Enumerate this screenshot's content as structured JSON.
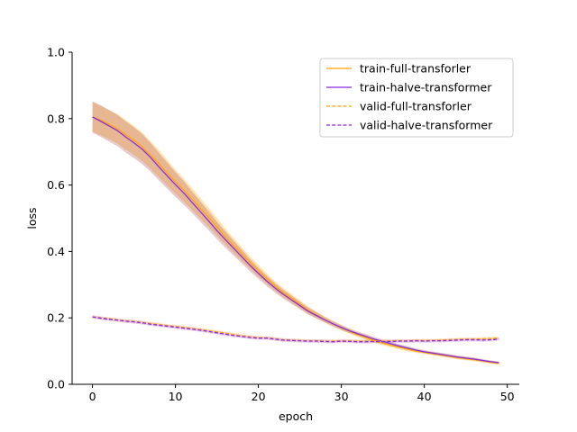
{
  "chart_data": {
    "type": "line",
    "title": "",
    "xlabel": "epoch",
    "ylabel": "loss",
    "xlim": [
      -2.45,
      51.45
    ],
    "ylim": [
      0.0,
      1.0
    ],
    "xticks": [
      0,
      10,
      20,
      30,
      40,
      50
    ],
    "yticks": [
      0.0,
      0.2,
      0.4,
      0.6,
      0.8,
      1.0
    ],
    "xtick_labels": [
      "0",
      "10",
      "20",
      "30",
      "40",
      "50"
    ],
    "ytick_labels": [
      "0.0",
      "0.2",
      "0.4",
      "0.6",
      "0.8",
      "1.0"
    ],
    "grid": false,
    "legend_position": "top-right",
    "x": [
      0,
      1,
      2,
      3,
      4,
      5,
      6,
      7,
      8,
      9,
      10,
      11,
      12,
      13,
      14,
      15,
      16,
      17,
      18,
      19,
      20,
      21,
      22,
      23,
      24,
      25,
      26,
      27,
      28,
      29,
      30,
      31,
      32,
      33,
      34,
      35,
      36,
      37,
      38,
      39,
      40,
      41,
      42,
      43,
      44,
      45,
      46,
      47,
      48,
      49
    ],
    "series": [
      {
        "name": "train-full-transforler",
        "color": "#ffa500",
        "dash": "solid",
        "values": [
          0.805,
          0.795,
          0.783,
          0.77,
          0.752,
          0.735,
          0.715,
          0.69,
          0.665,
          0.637,
          0.61,
          0.585,
          0.558,
          0.53,
          0.503,
          0.474,
          0.445,
          0.418,
          0.392,
          0.366,
          0.342,
          0.318,
          0.296,
          0.276,
          0.259,
          0.241,
          0.223,
          0.209,
          0.195,
          0.182,
          0.17,
          0.159,
          0.149,
          0.14,
          0.131,
          0.124,
          0.117,
          0.111,
          0.105,
          0.1,
          0.096,
          0.092,
          0.088,
          0.084,
          0.08,
          0.077,
          0.074,
          0.07,
          0.066,
          0.063
        ],
        "band_low": [
          0.76,
          0.75,
          0.738,
          0.725,
          0.707,
          0.69,
          0.672,
          0.648,
          0.624,
          0.598,
          0.573,
          0.55,
          0.525,
          0.499,
          0.474,
          0.447,
          0.42,
          0.395,
          0.371,
          0.347,
          0.324,
          0.302,
          0.281,
          0.262,
          0.246,
          0.229,
          0.212,
          0.199,
          0.186,
          0.174,
          0.162,
          0.152,
          0.142,
          0.133,
          0.125,
          0.118,
          0.111,
          0.105,
          0.099,
          0.095,
          0.091,
          0.087,
          0.083,
          0.079,
          0.075,
          0.072,
          0.069,
          0.066,
          0.062,
          0.059
        ],
        "band_high": [
          0.85,
          0.838,
          0.826,
          0.813,
          0.796,
          0.778,
          0.758,
          0.732,
          0.706,
          0.676,
          0.647,
          0.62,
          0.591,
          0.561,
          0.532,
          0.501,
          0.47,
          0.441,
          0.413,
          0.385,
          0.36,
          0.334,
          0.311,
          0.29,
          0.272,
          0.253,
          0.234,
          0.219,
          0.204,
          0.19,
          0.178,
          0.166,
          0.156,
          0.147,
          0.137,
          0.13,
          0.123,
          0.117,
          0.111,
          0.105,
          0.101,
          0.097,
          0.093,
          0.089,
          0.085,
          0.082,
          0.079,
          0.074,
          0.07,
          0.067
        ]
      },
      {
        "name": "train-halve-transformer",
        "color": "#8a2be2",
        "dash": "solid",
        "values": [
          0.805,
          0.792,
          0.778,
          0.764,
          0.745,
          0.727,
          0.708,
          0.683,
          0.655,
          0.628,
          0.601,
          0.576,
          0.548,
          0.52,
          0.492,
          0.463,
          0.436,
          0.41,
          0.384,
          0.358,
          0.334,
          0.311,
          0.29,
          0.271,
          0.254,
          0.237,
          0.22,
          0.207,
          0.194,
          0.182,
          0.171,
          0.161,
          0.152,
          0.144,
          0.136,
          0.129,
          0.122,
          0.115,
          0.109,
          0.103,
          0.098,
          0.094,
          0.09,
          0.086,
          0.082,
          0.079,
          0.076,
          0.072,
          0.068,
          0.065
        ],
        "band_low": [
          0.758,
          0.745,
          0.731,
          0.717,
          0.698,
          0.681,
          0.663,
          0.64,
          0.614,
          0.589,
          0.564,
          0.541,
          0.516,
          0.49,
          0.464,
          0.437,
          0.412,
          0.388,
          0.364,
          0.34,
          0.317,
          0.296,
          0.276,
          0.258,
          0.242,
          0.226,
          0.21,
          0.198,
          0.186,
          0.174,
          0.164,
          0.154,
          0.146,
          0.138,
          0.13,
          0.124,
          0.117,
          0.11,
          0.104,
          0.098,
          0.094,
          0.09,
          0.086,
          0.082,
          0.078,
          0.075,
          0.072,
          0.068,
          0.064,
          0.061
        ],
        "band_high": [
          0.852,
          0.84,
          0.826,
          0.812,
          0.792,
          0.774,
          0.754,
          0.727,
          0.697,
          0.668,
          0.639,
          0.612,
          0.581,
          0.551,
          0.521,
          0.49,
          0.461,
          0.433,
          0.405,
          0.377,
          0.351,
          0.327,
          0.305,
          0.285,
          0.267,
          0.249,
          0.231,
          0.217,
          0.203,
          0.19,
          0.179,
          0.168,
          0.159,
          0.151,
          0.142,
          0.135,
          0.128,
          0.121,
          0.115,
          0.108,
          0.103,
          0.099,
          0.095,
          0.091,
          0.087,
          0.084,
          0.081,
          0.076,
          0.072,
          0.069
        ]
      },
      {
        "name": "valid-full-transforler",
        "color": "#ffa500",
        "dash": "dashed",
        "values": [
          0.203,
          0.2,
          0.197,
          0.194,
          0.191,
          0.189,
          0.186,
          0.183,
          0.18,
          0.177,
          0.174,
          0.171,
          0.168,
          0.165,
          0.161,
          0.158,
          0.154,
          0.15,
          0.146,
          0.143,
          0.14,
          0.14,
          0.137,
          0.134,
          0.133,
          0.132,
          0.131,
          0.131,
          0.13,
          0.13,
          0.131,
          0.131,
          0.13,
          0.13,
          0.13,
          0.13,
          0.131,
          0.131,
          0.131,
          0.132,
          0.132,
          0.132,
          0.133,
          0.134,
          0.135,
          0.136,
          0.136,
          0.137,
          0.138,
          0.139
        ],
        "band_low": [
          0.198,
          0.195,
          0.192,
          0.189,
          0.186,
          0.184,
          0.181,
          0.178,
          0.175,
          0.172,
          0.169,
          0.166,
          0.163,
          0.16,
          0.156,
          0.153,
          0.149,
          0.145,
          0.141,
          0.138,
          0.135,
          0.135,
          0.132,
          0.129,
          0.128,
          0.127,
          0.126,
          0.126,
          0.125,
          0.125,
          0.126,
          0.126,
          0.125,
          0.125,
          0.125,
          0.125,
          0.126,
          0.126,
          0.126,
          0.127,
          0.127,
          0.127,
          0.128,
          0.129,
          0.13,
          0.131,
          0.131,
          0.132,
          0.133,
          0.134
        ],
        "band_high": [
          0.208,
          0.205,
          0.202,
          0.199,
          0.196,
          0.194,
          0.191,
          0.188,
          0.185,
          0.182,
          0.179,
          0.176,
          0.173,
          0.17,
          0.166,
          0.163,
          0.159,
          0.155,
          0.151,
          0.148,
          0.145,
          0.145,
          0.142,
          0.139,
          0.138,
          0.137,
          0.136,
          0.136,
          0.135,
          0.135,
          0.136,
          0.136,
          0.135,
          0.135,
          0.135,
          0.135,
          0.136,
          0.136,
          0.136,
          0.137,
          0.137,
          0.137,
          0.138,
          0.139,
          0.14,
          0.141,
          0.141,
          0.142,
          0.143,
          0.144
        ]
      },
      {
        "name": "valid-halve-transformer",
        "color": "#8a2be2",
        "dash": "dashed",
        "values": [
          0.203,
          0.199,
          0.196,
          0.193,
          0.19,
          0.188,
          0.185,
          0.181,
          0.178,
          0.175,
          0.172,
          0.169,
          0.166,
          0.163,
          0.159,
          0.155,
          0.151,
          0.147,
          0.144,
          0.141,
          0.139,
          0.139,
          0.136,
          0.133,
          0.132,
          0.131,
          0.13,
          0.13,
          0.129,
          0.128,
          0.13,
          0.129,
          0.128,
          0.128,
          0.129,
          0.128,
          0.129,
          0.13,
          0.13,
          0.131,
          0.13,
          0.131,
          0.131,
          0.132,
          0.133,
          0.134,
          0.134,
          0.133,
          0.134,
          0.136
        ],
        "band_low": [
          0.198,
          0.194,
          0.191,
          0.188,
          0.185,
          0.183,
          0.18,
          0.176,
          0.173,
          0.17,
          0.167,
          0.164,
          0.161,
          0.158,
          0.154,
          0.15,
          0.146,
          0.142,
          0.139,
          0.136,
          0.134,
          0.134,
          0.131,
          0.128,
          0.127,
          0.126,
          0.125,
          0.125,
          0.124,
          0.123,
          0.125,
          0.124,
          0.123,
          0.123,
          0.124,
          0.123,
          0.124,
          0.125,
          0.125,
          0.126,
          0.125,
          0.126,
          0.126,
          0.127,
          0.128,
          0.129,
          0.129,
          0.128,
          0.129,
          0.131
        ],
        "band_high": [
          0.208,
          0.204,
          0.201,
          0.198,
          0.195,
          0.193,
          0.19,
          0.186,
          0.183,
          0.18,
          0.177,
          0.174,
          0.171,
          0.168,
          0.164,
          0.16,
          0.156,
          0.152,
          0.149,
          0.146,
          0.144,
          0.144,
          0.141,
          0.138,
          0.137,
          0.136,
          0.135,
          0.135,
          0.134,
          0.133,
          0.135,
          0.134,
          0.133,
          0.133,
          0.134,
          0.133,
          0.134,
          0.135,
          0.135,
          0.136,
          0.135,
          0.136,
          0.136,
          0.137,
          0.138,
          0.139,
          0.139,
          0.138,
          0.139,
          0.141
        ]
      }
    ]
  }
}
